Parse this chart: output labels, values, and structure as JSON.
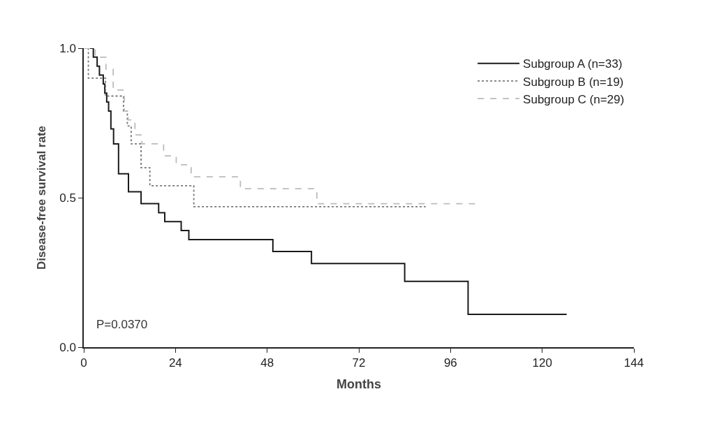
{
  "chart_data": {
    "type": "step",
    "xlabel": "Months",
    "ylabel": "Disease-free survival rate",
    "xlim": [
      0,
      144
    ],
    "xticks": [
      0,
      24,
      48,
      72,
      96,
      120,
      144
    ],
    "ylim": [
      0,
      1.0
    ],
    "yticks": [
      {
        "value": 0,
        "label": "0.0"
      },
      {
        "value": 0.5,
        "label": "0.5"
      },
      {
        "value": 1.0,
        "label": "1.0"
      }
    ],
    "legend": "top right",
    "marker": "none",
    "annotations": [
      "P=0.0370"
    ],
    "series": [
      {
        "name": "Subgroup A (n=33)",
        "color": "#1a1a1a",
        "line_style": "solid",
        "x": [
          0,
          2.5,
          3.5,
          4.1,
          5.1,
          5.5,
          6,
          6.5,
          7.1,
          7.8,
          9.1,
          11.7,
          15,
          19.6,
          21.2,
          25.5,
          27.5,
          49.5,
          59.6,
          84,
          100.6,
          126.4
        ],
        "values": [
          1.0,
          0.97,
          0.94,
          0.91,
          0.88,
          0.85,
          0.82,
          0.79,
          0.73,
          0.68,
          0.58,
          0.52,
          0.48,
          0.45,
          0.42,
          0.39,
          0.36,
          0.32,
          0.28,
          0.22,
          0.11,
          0.11
        ]
      },
      {
        "name": "Subgroup B (n=19)",
        "color": "#777777",
        "line_style": "dotted",
        "x": [
          0,
          1.2,
          5.7,
          10.4,
          11.4,
          12.4,
          15,
          17.3,
          28.8,
          89.5
        ],
        "values": [
          1.0,
          0.9,
          0.84,
          0.79,
          0.74,
          0.68,
          0.6,
          0.54,
          0.47,
          0.47
        ]
      },
      {
        "name": "Subgroup C (n=29)",
        "color": "#bbbbbb",
        "line_style": "dashed",
        "x": [
          0,
          3,
          5.8,
          7.7,
          10.6,
          11.6,
          13.4,
          15.2,
          20.9,
          24.2,
          28.1,
          41,
          61,
          103
        ],
        "values": [
          1.0,
          0.97,
          0.93,
          0.86,
          0.79,
          0.76,
          0.71,
          0.68,
          0.64,
          0.61,
          0.57,
          0.53,
          0.48,
          0.48
        ]
      }
    ]
  }
}
